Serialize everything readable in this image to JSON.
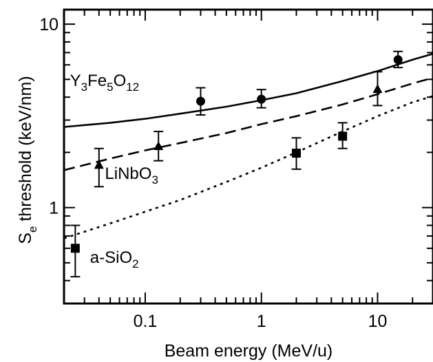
{
  "chart_data": {
    "type": "scatter",
    "title": "",
    "xlabel": "Beam energy (MeV/u)",
    "ylabel": {
      "main": "S",
      "sub": "e",
      "rest": " threshold (keV/nm)"
    },
    "xscale": "log",
    "yscale": "log",
    "xlim": [
      0.02,
      30
    ],
    "ylim": [
      0.3,
      12
    ],
    "x_ticks": [
      {
        "value": 0.1,
        "label": "0.1"
      },
      {
        "value": 1,
        "label": "1"
      },
      {
        "value": 10,
        "label": "10"
      }
    ],
    "y_ticks": [
      {
        "value": 1,
        "label": "1"
      },
      {
        "value": 10,
        "label": "10"
      }
    ],
    "grid": false,
    "legend": "none",
    "series": [
      {
        "name": "Y3Fe5O12",
        "label_parts": [
          [
            "Y",
            ""
          ],
          [
            "3",
            "sub"
          ],
          [
            "Fe",
            ""
          ],
          [
            "5",
            "sub"
          ],
          [
            "O",
            ""
          ],
          [
            "12",
            "sub"
          ]
        ],
        "label_anchor": {
          "x": 0.0225,
          "y": 4.6
        },
        "marker": "circle",
        "line": "solid",
        "points": [
          {
            "x": 0.3,
            "y": 3.8,
            "ylow": 3.2,
            "yhigh": 4.5
          },
          {
            "x": 1.0,
            "y": 3.9,
            "ylow": 3.5,
            "yhigh": 4.4
          },
          {
            "x": 15,
            "y": 6.4,
            "ylow": 5.8,
            "yhigh": 7.1
          }
        ],
        "fit": [
          [
            0.02,
            2.75
          ],
          [
            0.05,
            2.9
          ],
          [
            0.1,
            3.05
          ],
          [
            0.2,
            3.25
          ],
          [
            0.5,
            3.55
          ],
          [
            1,
            3.85
          ],
          [
            2,
            4.2
          ],
          [
            5,
            4.9
          ],
          [
            10,
            5.55
          ],
          [
            20,
            6.4
          ],
          [
            30,
            6.9
          ]
        ]
      },
      {
        "name": "LiNbO3",
        "label_parts": [
          [
            "LiNbO",
            ""
          ],
          [
            "3",
            "sub"
          ]
        ],
        "label_anchor": {
          "x": 0.045,
          "y": 1.43
        },
        "marker": "triangle",
        "line": "dashed",
        "points": [
          {
            "x": 0.04,
            "y": 1.7,
            "ylow": 1.3,
            "yhigh": 2.1
          },
          {
            "x": 0.13,
            "y": 2.15,
            "ylow": 1.8,
            "yhigh": 2.6
          },
          {
            "x": 10,
            "y": 4.4,
            "ylow": 3.6,
            "yhigh": 5.5
          }
        ],
        "fit": [
          [
            0.02,
            1.6
          ],
          [
            0.05,
            1.85
          ],
          [
            0.1,
            2.05
          ],
          [
            0.2,
            2.25
          ],
          [
            0.5,
            2.55
          ],
          [
            1,
            2.85
          ],
          [
            2,
            3.15
          ],
          [
            5,
            3.65
          ],
          [
            10,
            4.15
          ],
          [
            20,
            4.75
          ],
          [
            30,
            5.1
          ]
        ]
      },
      {
        "name": "a-SiO2",
        "label_parts": [
          [
            "a-SiO",
            ""
          ],
          [
            "2",
            "sub"
          ]
        ],
        "label_anchor": {
          "x": 0.0335,
          "y": 0.5
        },
        "marker": "square",
        "line": "dotted",
        "points": [
          {
            "x": 0.025,
            "y": 0.6,
            "ylow": 0.42,
            "yhigh": 0.8
          },
          {
            "x": 2,
            "y": 1.98,
            "ylow": 1.62,
            "yhigh": 2.4
          },
          {
            "x": 5,
            "y": 2.45,
            "ylow": 2.1,
            "yhigh": 2.9
          }
        ],
        "fit": [
          [
            0.02,
            0.68
          ],
          [
            0.05,
            0.82
          ],
          [
            0.1,
            0.95
          ],
          [
            0.2,
            1.1
          ],
          [
            0.5,
            1.38
          ],
          [
            1,
            1.65
          ],
          [
            2,
            2.0
          ],
          [
            5,
            2.6
          ],
          [
            10,
            3.15
          ],
          [
            20,
            3.75
          ],
          [
            30,
            4.05
          ]
        ]
      }
    ]
  }
}
